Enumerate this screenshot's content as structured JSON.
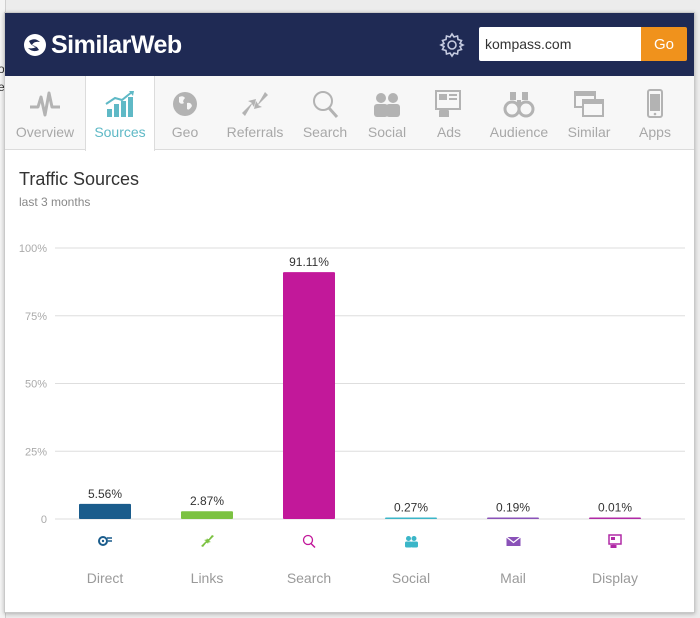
{
  "header": {
    "brand": "SimilarWeb",
    "search_value": "kompass.com",
    "go_label": "Go"
  },
  "page_edge": {
    "chars": [
      "o",
      "e"
    ]
  },
  "tabs": [
    {
      "id": "overview",
      "label": "Overview",
      "icon": "pulse-icon",
      "active": false
    },
    {
      "id": "sources",
      "label": "Sources",
      "icon": "bar-chart-icon",
      "active": true
    },
    {
      "id": "geo",
      "label": "Geo",
      "icon": "globe-icon",
      "active": false
    },
    {
      "id": "referrals",
      "label": "Referrals",
      "icon": "arrows-icon",
      "active": false
    },
    {
      "id": "search",
      "label": "Search",
      "icon": "magnifier-icon",
      "active": false
    },
    {
      "id": "social",
      "label": "Social",
      "icon": "people-icon",
      "active": false
    },
    {
      "id": "ads",
      "label": "Ads",
      "icon": "ads-icon",
      "active": false
    },
    {
      "id": "audience",
      "label": "Audience",
      "icon": "binoculars-icon",
      "active": false
    },
    {
      "id": "similar",
      "label": "Similar",
      "icon": "windows-icon",
      "active": false
    },
    {
      "id": "apps",
      "label": "Apps",
      "icon": "phone-icon",
      "active": false
    }
  ],
  "main": {
    "title": "Traffic Sources",
    "subtitle": "last 3 months"
  },
  "colors": {
    "header_bg": "#1f2a54",
    "go_button": "#f0921c",
    "active_tab": "#5fb9c6",
    "direct": "#1a5c8c",
    "links": "#7cc242",
    "search": "#c2189a",
    "social": "#3bb6c8",
    "mail": "#8a52b8",
    "display": "#b02aa6"
  },
  "chart_data": {
    "type": "bar",
    "title": "Traffic Sources",
    "subtitle": "last 3 months",
    "categories": [
      "Direct",
      "Links",
      "Search",
      "Social",
      "Mail",
      "Display"
    ],
    "values": [
      5.56,
      2.87,
      91.11,
      0.27,
      0.19,
      0.01
    ],
    "value_labels": [
      "5.56%",
      "2.87%",
      "91.11%",
      "0.27%",
      "0.19%",
      "0.01%"
    ],
    "category_icons": [
      "direct-icon",
      "links-icon",
      "search-icon",
      "social-icon",
      "mail-icon",
      "display-icon"
    ],
    "ylim": [
      0,
      100
    ],
    "yticks": [
      0,
      25,
      50,
      75,
      100
    ],
    "ytick_labels": [
      "0",
      "25%",
      "50%",
      "75%",
      "100%"
    ],
    "grid": true,
    "legend": "none",
    "xlabel": "",
    "ylabel": ""
  }
}
